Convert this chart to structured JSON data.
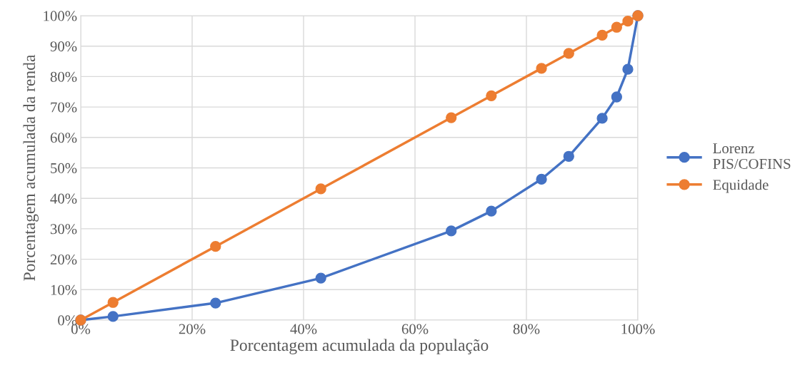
{
  "chart_data": {
    "type": "line",
    "xlabel": "Porcentagem acumulada da população",
    "ylabel": "Porcentagem acumulada da renda",
    "x": [
      0,
      5.8,
      24.2,
      43.1,
      66.5,
      73.7,
      82.7,
      87.6,
      93.6,
      96.2,
      98.2,
      100
    ],
    "series": [
      {
        "name": "Lorenz PIS/COFINS",
        "color": "#4472c4",
        "values": [
          0,
          1.2,
          5.6,
          13.8,
          29.3,
          35.8,
          46.3,
          53.8,
          66.3,
          73.3,
          82.4,
          100
        ]
      },
      {
        "name": "Equidade",
        "color": "#ed7d31",
        "values": [
          0,
          5.8,
          24.2,
          43.1,
          66.5,
          73.7,
          82.7,
          87.6,
          93.6,
          96.2,
          98.2,
          100
        ]
      }
    ],
    "xlim": [
      0,
      100
    ],
    "ylim": [
      0,
      100
    ],
    "xticks": [
      {
        "value": 0,
        "label": "0%"
      },
      {
        "value": 20,
        "label": "20%"
      },
      {
        "value": 40,
        "label": "40%"
      },
      {
        "value": 60,
        "label": "60%"
      },
      {
        "value": 80,
        "label": "80%"
      },
      {
        "value": 100,
        "label": "100%"
      }
    ],
    "yticks": [
      {
        "value": 0,
        "label": "0%"
      },
      {
        "value": 10,
        "label": "10%"
      },
      {
        "value": 20,
        "label": "20%"
      },
      {
        "value": 30,
        "label": "30%"
      },
      {
        "value": 40,
        "label": "40%"
      },
      {
        "value": 50,
        "label": "50%"
      },
      {
        "value": 60,
        "label": "60%"
      },
      {
        "value": 70,
        "label": "70%"
      },
      {
        "value": 80,
        "label": "80%"
      },
      {
        "value": 90,
        "label": "90%"
      },
      {
        "value": 100,
        "label": "100%"
      }
    ],
    "grid": true,
    "legend": "right",
    "marker": "circle",
    "line_style": "solid"
  }
}
